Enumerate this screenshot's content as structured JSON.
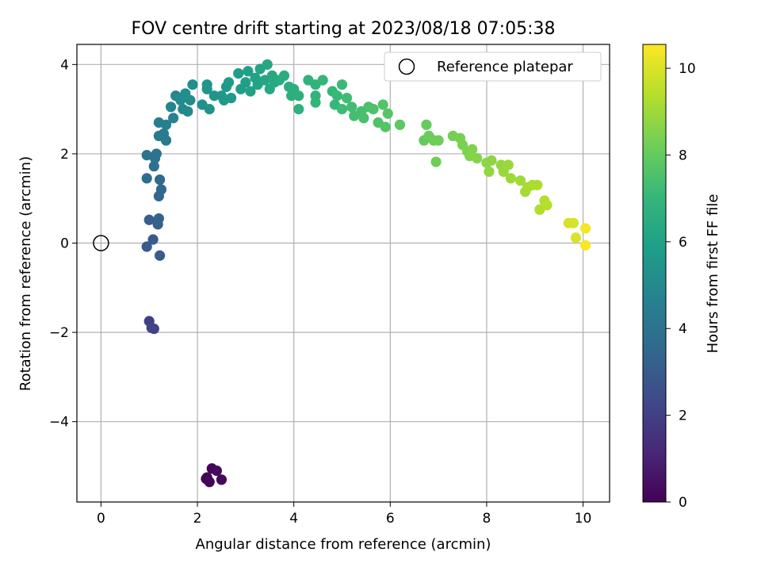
{
  "chart_data": {
    "type": "scatter",
    "title": "FOV centre drift starting at 2023/08/18 07:05:38",
    "xlabel": "Angular distance from reference (arcmin)",
    "ylabel": "Rotation from reference (arcmin)",
    "xlim": [
      -0.5,
      10.55
    ],
    "ylim": [
      -5.8,
      4.45
    ],
    "x_ticks": [
      0,
      2,
      4,
      6,
      8,
      10
    ],
    "y_ticks": [
      -4,
      -2,
      0,
      2,
      4
    ],
    "x_tick_labels": [
      "0",
      "2",
      "4",
      "6",
      "8",
      "10"
    ],
    "y_tick_labels": [
      "−4",
      "−2",
      "0",
      "2",
      "4"
    ],
    "grid": true,
    "legend": {
      "placement": "top-right",
      "entries": [
        "Reference platepar"
      ]
    },
    "reference_point": {
      "x": 0,
      "y": 0,
      "label": "Reference platepar"
    },
    "colorbar": {
      "label": "Hours from first FF file",
      "range": [
        0,
        10.55
      ],
      "ticks": [
        0,
        2,
        4,
        6,
        8,
        10
      ],
      "tick_labels": [
        "0",
        "2",
        "4",
        "6",
        "8",
        "10"
      ],
      "colormap": "viridis",
      "stops": [
        "#440154",
        "#482878",
        "#3e4a89",
        "#31688e",
        "#26828e",
        "#1f9e89",
        "#35b779",
        "#6ece58",
        "#b5de2b",
        "#fde725"
      ]
    },
    "points": [
      {
        "x": 2.2,
        "y": -5.25,
        "t": 0.05
      },
      {
        "x": 2.25,
        "y": -5.35,
        "t": 0.1
      },
      {
        "x": 2.3,
        "y": -5.05,
        "t": 0.15
      },
      {
        "x": 2.4,
        "y": -5.1,
        "t": 0.2
      },
      {
        "x": 2.5,
        "y": -5.3,
        "t": 0.25
      },
      {
        "x": 2.18,
        "y": -5.28,
        "t": 0.1
      },
      {
        "x": 1.0,
        "y": -1.75,
        "t": 2.0
      },
      {
        "x": 1.05,
        "y": -1.9,
        "t": 2.1
      },
      {
        "x": 1.1,
        "y": -1.92,
        "t": 2.15
      },
      {
        "x": 0.95,
        "y": -0.08,
        "t": 3.0
      },
      {
        "x": 1.08,
        "y": 0.08,
        "t": 3.05
      },
      {
        "x": 1.22,
        "y": -0.28,
        "t": 3.1
      },
      {
        "x": 1.0,
        "y": 0.52,
        "t": 3.2
      },
      {
        "x": 1.18,
        "y": 0.42,
        "t": 3.25
      },
      {
        "x": 1.2,
        "y": 0.55,
        "t": 3.3
      },
      {
        "x": 1.2,
        "y": 1.05,
        "t": 3.5
      },
      {
        "x": 1.25,
        "y": 1.2,
        "t": 3.55
      },
      {
        "x": 1.22,
        "y": 1.42,
        "t": 3.6
      },
      {
        "x": 0.95,
        "y": 1.45,
        "t": 3.8
      },
      {
        "x": 1.1,
        "y": 1.72,
        "t": 3.9
      },
      {
        "x": 1.12,
        "y": 1.9,
        "t": 3.95
      },
      {
        "x": 0.95,
        "y": 1.97,
        "t": 4.0
      },
      {
        "x": 1.15,
        "y": 2.0,
        "t": 4.05
      },
      {
        "x": 1.2,
        "y": 2.4,
        "t": 4.3
      },
      {
        "x": 1.35,
        "y": 2.3,
        "t": 4.35
      },
      {
        "x": 1.3,
        "y": 2.45,
        "t": 4.4
      },
      {
        "x": 1.2,
        "y": 2.7,
        "t": 4.5
      },
      {
        "x": 1.35,
        "y": 2.65,
        "t": 4.6
      },
      {
        "x": 1.5,
        "y": 2.8,
        "t": 4.7
      },
      {
        "x": 1.45,
        "y": 3.05,
        "t": 4.8
      },
      {
        "x": 1.55,
        "y": 3.3,
        "t": 4.9
      },
      {
        "x": 1.7,
        "y": 3.0,
        "t": 5.0
      },
      {
        "x": 1.8,
        "y": 2.95,
        "t": 5.05
      },
      {
        "x": 1.65,
        "y": 3.2,
        "t": 5.1
      },
      {
        "x": 1.85,
        "y": 3.2,
        "t": 5.15
      },
      {
        "x": 1.9,
        "y": 3.55,
        "t": 5.25
      },
      {
        "x": 1.75,
        "y": 3.35,
        "t": 5.2
      },
      {
        "x": 2.1,
        "y": 3.1,
        "t": 5.3
      },
      {
        "x": 2.25,
        "y": 3.0,
        "t": 5.35
      },
      {
        "x": 2.2,
        "y": 3.45,
        "t": 5.4
      },
      {
        "x": 2.2,
        "y": 3.55,
        "t": 5.45
      },
      {
        "x": 2.35,
        "y": 3.3,
        "t": 5.5
      },
      {
        "x": 2.5,
        "y": 3.3,
        "t": 5.55
      },
      {
        "x": 2.55,
        "y": 3.2,
        "t": 5.6
      },
      {
        "x": 2.6,
        "y": 3.5,
        "t": 5.65
      },
      {
        "x": 2.7,
        "y": 3.25,
        "t": 5.7
      },
      {
        "x": 2.65,
        "y": 3.6,
        "t": 5.75
      },
      {
        "x": 2.85,
        "y": 3.8,
        "t": 5.8
      },
      {
        "x": 2.9,
        "y": 3.45,
        "t": 5.85
      },
      {
        "x": 3.0,
        "y": 3.6,
        "t": 5.9
      },
      {
        "x": 3.05,
        "y": 3.85,
        "t": 5.95
      },
      {
        "x": 3.1,
        "y": 3.4,
        "t": 6.0
      },
      {
        "x": 3.2,
        "y": 3.7,
        "t": 6.05
      },
      {
        "x": 3.25,
        "y": 3.55,
        "t": 6.1
      },
      {
        "x": 3.3,
        "y": 3.9,
        "t": 6.15
      },
      {
        "x": 3.4,
        "y": 3.65,
        "t": 6.2
      },
      {
        "x": 3.45,
        "y": 4.0,
        "t": 6.25
      },
      {
        "x": 3.5,
        "y": 3.45,
        "t": 6.3
      },
      {
        "x": 3.55,
        "y": 3.75,
        "t": 6.35
      },
      {
        "x": 3.6,
        "y": 3.6,
        "t": 6.4
      },
      {
        "x": 3.7,
        "y": 3.65,
        "t": 6.45
      },
      {
        "x": 3.8,
        "y": 3.75,
        "t": 6.5
      },
      {
        "x": 3.9,
        "y": 3.5,
        "t": 6.55
      },
      {
        "x": 4.0,
        "y": 3.45,
        "t": 6.6
      },
      {
        "x": 3.95,
        "y": 3.3,
        "t": 6.62
      },
      {
        "x": 4.1,
        "y": 3.3,
        "t": 6.65
      },
      {
        "x": 4.1,
        "y": 3.0,
        "t": 6.7
      },
      {
        "x": 4.3,
        "y": 3.65,
        "t": 6.75
      },
      {
        "x": 4.45,
        "y": 3.55,
        "t": 6.8
      },
      {
        "x": 4.45,
        "y": 3.3,
        "t": 6.85
      },
      {
        "x": 4.45,
        "y": 3.15,
        "t": 6.9
      },
      {
        "x": 4.6,
        "y": 3.65,
        "t": 6.95
      },
      {
        "x": 4.8,
        "y": 3.4,
        "t": 7.0
      },
      {
        "x": 4.85,
        "y": 3.1,
        "t": 7.05
      },
      {
        "x": 4.9,
        "y": 3.3,
        "t": 7.1
      },
      {
        "x": 5.0,
        "y": 3.55,
        "t": 7.15
      },
      {
        "x": 5.0,
        "y": 3.0,
        "t": 7.2
      },
      {
        "x": 5.1,
        "y": 3.25,
        "t": 7.25
      },
      {
        "x": 5.2,
        "y": 3.05,
        "t": 7.3
      },
      {
        "x": 5.25,
        "y": 2.85,
        "t": 7.35
      },
      {
        "x": 5.4,
        "y": 2.95,
        "t": 7.4
      },
      {
        "x": 5.45,
        "y": 2.8,
        "t": 7.45
      },
      {
        "x": 5.55,
        "y": 3.05,
        "t": 7.5
      },
      {
        "x": 5.65,
        "y": 3.0,
        "t": 7.55
      },
      {
        "x": 5.75,
        "y": 2.7,
        "t": 7.6
      },
      {
        "x": 5.85,
        "y": 3.1,
        "t": 7.65
      },
      {
        "x": 5.9,
        "y": 2.6,
        "t": 7.7
      },
      {
        "x": 5.95,
        "y": 2.9,
        "t": 7.75
      },
      {
        "x": 6.2,
        "y": 2.65,
        "t": 7.85
      },
      {
        "x": 6.7,
        "y": 2.3,
        "t": 8.0
      },
      {
        "x": 6.75,
        "y": 2.65,
        "t": 8.05
      },
      {
        "x": 6.8,
        "y": 2.4,
        "t": 8.1
      },
      {
        "x": 6.9,
        "y": 2.3,
        "t": 8.15
      },
      {
        "x": 7.0,
        "y": 2.3,
        "t": 8.2
      },
      {
        "x": 6.95,
        "y": 1.82,
        "t": 8.22
      },
      {
        "x": 7.3,
        "y": 2.4,
        "t": 8.3
      },
      {
        "x": 7.45,
        "y": 2.35,
        "t": 8.35
      },
      {
        "x": 7.5,
        "y": 2.2,
        "t": 8.4
      },
      {
        "x": 7.6,
        "y": 2.05,
        "t": 8.45
      },
      {
        "x": 7.7,
        "y": 2.1,
        "t": 8.5
      },
      {
        "x": 7.65,
        "y": 1.95,
        "t": 8.55
      },
      {
        "x": 7.8,
        "y": 1.9,
        "t": 8.6
      },
      {
        "x": 8.0,
        "y": 1.8,
        "t": 8.7
      },
      {
        "x": 8.1,
        "y": 1.85,
        "t": 8.75
      },
      {
        "x": 8.05,
        "y": 1.6,
        "t": 8.8
      },
      {
        "x": 8.3,
        "y": 1.75,
        "t": 8.85
      },
      {
        "x": 8.35,
        "y": 1.6,
        "t": 8.9
      },
      {
        "x": 8.45,
        "y": 1.75,
        "t": 8.95
      },
      {
        "x": 8.5,
        "y": 1.45,
        "t": 9.0
      },
      {
        "x": 8.7,
        "y": 1.4,
        "t": 9.05
      },
      {
        "x": 8.8,
        "y": 1.15,
        "t": 9.1
      },
      {
        "x": 8.85,
        "y": 1.25,
        "t": 9.15
      },
      {
        "x": 8.95,
        "y": 1.3,
        "t": 9.2
      },
      {
        "x": 9.05,
        "y": 1.3,
        "t": 9.25
      },
      {
        "x": 9.1,
        "y": 0.75,
        "t": 9.3
      },
      {
        "x": 9.2,
        "y": 0.95,
        "t": 9.35
      },
      {
        "x": 9.25,
        "y": 0.85,
        "t": 9.4
      },
      {
        "x": 9.7,
        "y": 0.45,
        "t": 9.9
      },
      {
        "x": 9.8,
        "y": 0.45,
        "t": 9.95
      },
      {
        "x": 9.85,
        "y": 0.12,
        "t": 10.0
      },
      {
        "x": 10.05,
        "y": 0.33,
        "t": 10.4
      },
      {
        "x": 10.05,
        "y": -0.05,
        "t": 10.5
      }
    ]
  }
}
